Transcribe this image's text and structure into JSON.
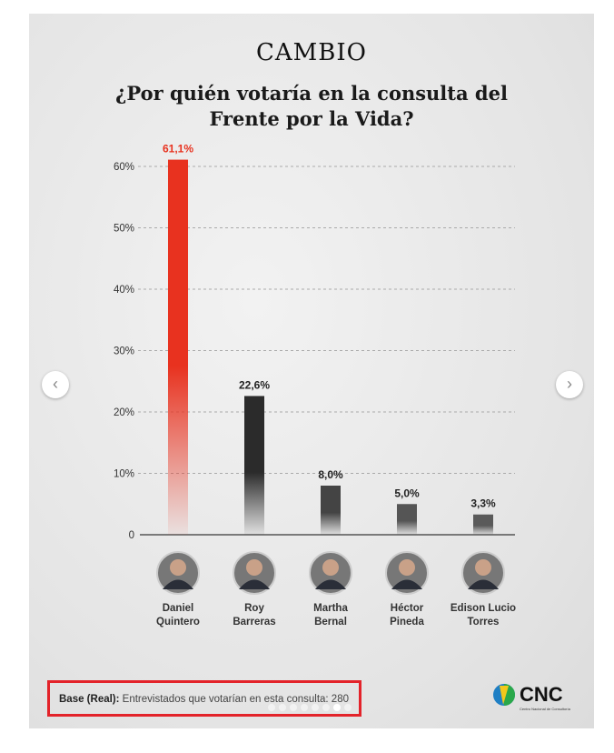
{
  "brand": "CAMBIO",
  "title": "¿Por quién votaría en la consulta del Frente por la Vida?",
  "chart_data": {
    "type": "bar",
    "title": "¿Por quién votaría en la consulta del Frente por la Vida?",
    "categories": [
      "Daniel Quintero",
      "Roy Barreras",
      "Martha Bernal",
      "Héctor Pineda",
      "Edison Lucio Torres"
    ],
    "name_lines": [
      [
        "Daniel",
        "Quintero"
      ],
      [
        "Roy",
        "Barreras"
      ],
      [
        "Martha",
        "Bernal"
      ],
      [
        "Héctor",
        "Pineda"
      ],
      [
        "Edison Lucio",
        "Torres"
      ]
    ],
    "values": [
      61.1,
      22.6,
      8.0,
      5.0,
      3.3
    ],
    "labels": [
      "61,1%",
      "22,6%",
      "8,0%",
      "5,0%",
      "3,3%"
    ],
    "colors": [
      "#e8321f",
      "#2b2b2b",
      "#444444",
      "#555555",
      "#5a5a5a"
    ],
    "yticks": [
      0,
      10,
      20,
      30,
      40,
      50,
      60
    ],
    "ytick_labels": [
      "0",
      "10%",
      "20%",
      "30%",
      "40%",
      "50%",
      "60%"
    ],
    "ylim": [
      0,
      60
    ],
    "grid": true
  },
  "footer": {
    "base_label": "Base (Real):",
    "base_text": " Entrevistados que votarían en esta consulta: 280",
    "logo": "CNC",
    "logo_sub": "Centro Nacional de Consultoría"
  },
  "carousel": {
    "count": 8,
    "active": 7,
    "prev": "‹",
    "next": "›"
  }
}
